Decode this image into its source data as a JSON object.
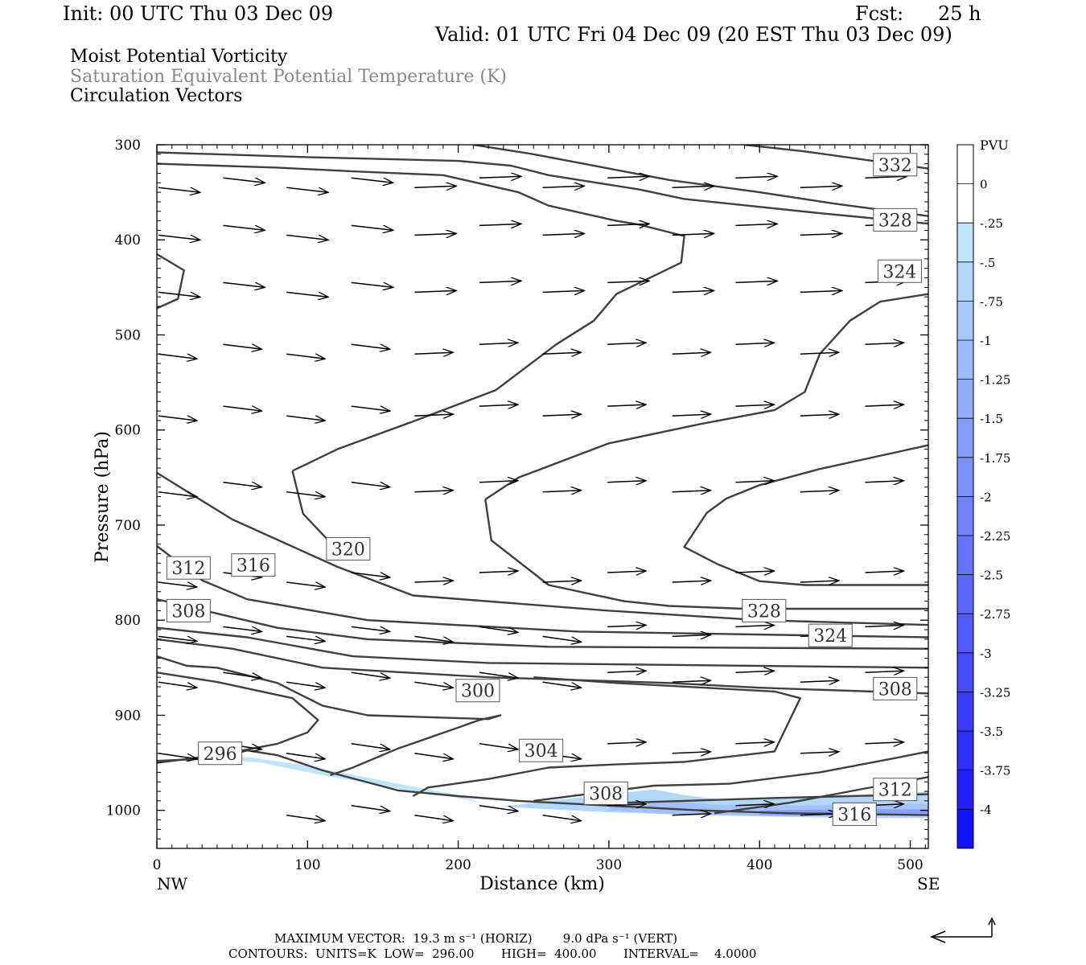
{
  "header": {
    "init": "Init: 00 UTC Thu 03 Dec 09",
    "fcst_label": "Fcst:",
    "fcst_value": "25 h",
    "valid": "Valid: 01 UTC Fri 04 Dec 09 (20 EST Thu 03 Dec 09)"
  },
  "fields": {
    "field1": "Moist Potential Vorticity",
    "field2": "Saturation Equivalent Potential Temperature (K)",
    "field3": "Circulation Vectors"
  },
  "colors": {
    "contour": "#404040",
    "field2_text": "#888888",
    "shade_light": "#bfe4fb"
  },
  "chart_data": {
    "type": "cross-section",
    "xlabel": "Distance (km)",
    "ylabel": "Pressure (hPa)",
    "x_left_label": "NW",
    "x_right_label": "SE",
    "xlim": [
      0,
      512
    ],
    "ylim": [
      1040,
      300
    ],
    "x_ticks": [
      0,
      100,
      200,
      300,
      400,
      500
    ],
    "y_ticks": [
      300,
      400,
      500,
      600,
      700,
      800,
      900,
      1000
    ],
    "colorbar": {
      "title": "PVU",
      "levels": [
        "0",
        "-.25",
        "-.5",
        "-.75",
        "-1",
        "-1.25",
        "-1.5",
        "-1.75",
        "-2",
        "-2.25",
        "-2.5",
        "-2.75",
        "-3",
        "-3.25",
        "-3.5",
        "-3.75",
        "-4"
      ],
      "colors": [
        "#ffffff",
        "#ffffff",
        "#bfe4fb",
        "#b3d6fb",
        "#a8c8fb",
        "#9dbafb",
        "#92acfb",
        "#879efb",
        "#7c90fb",
        "#7182fb",
        "#6674fb",
        "#5b66fb",
        "#5058fb",
        "#454afb",
        "#3a3cfb",
        "#2f2efb",
        "#2420fb",
        "#1212fb"
      ]
    },
    "contour_labels": [
      {
        "text": "332",
        "x": 490,
        "p": 321
      },
      {
        "text": "328",
        "x": 490,
        "p": 379
      },
      {
        "text": "324",
        "x": 493,
        "p": 433
      },
      {
        "text": "320",
        "x": 127,
        "p": 725
      },
      {
        "text": "316",
        "x": 64,
        "p": 742
      },
      {
        "text": "312",
        "x": 21,
        "p": 745
      },
      {
        "text": "308",
        "x": 21,
        "p": 790
      },
      {
        "text": "328",
        "x": 403,
        "p": 790
      },
      {
        "text": "324",
        "x": 447,
        "p": 816
      },
      {
        "text": "300",
        "x": 213,
        "p": 874
      },
      {
        "text": "308",
        "x": 490,
        "p": 872
      },
      {
        "text": "304",
        "x": 255,
        "p": 937
      },
      {
        "text": "296",
        "x": 42,
        "p": 940
      },
      {
        "text": "308",
        "x": 298,
        "p": 982
      },
      {
        "text": "312",
        "x": 490,
        "p": 978
      },
      {
        "text": "316",
        "x": 463,
        "p": 1004
      }
    ],
    "contours": [
      [
        [
          0,
          308
        ],
        [
          100,
          313
        ],
        [
          200,
          317
        ],
        [
          235,
          322
        ],
        [
          260,
          332
        ],
        [
          320,
          347
        ],
        [
          350,
          357
        ],
        [
          440,
          372
        ],
        [
          512,
          383
        ]
      ],
      [
        [
          210,
          300
        ],
        [
          250,
          310
        ],
        [
          300,
          325
        ],
        [
          340,
          337
        ],
        [
          400,
          350
        ],
        [
          450,
          362
        ],
        [
          512,
          375
        ]
      ],
      [
        [
          390,
          300
        ],
        [
          430,
          307
        ],
        [
          480,
          318
        ],
        [
          512,
          325
        ]
      ],
      [
        [
          0,
          415
        ],
        [
          18,
          432
        ],
        [
          14,
          462
        ],
        [
          0,
          472
        ]
      ],
      [
        [
          90,
          643
        ],
        [
          120,
          620
        ],
        [
          170,
          591
        ],
        [
          225,
          558
        ],
        [
          265,
          510
        ],
        [
          290,
          485
        ],
        [
          305,
          457
        ],
        [
          348,
          424
        ],
        [
          350,
          396
        ],
        [
          320,
          384
        ],
        [
          305,
          380
        ],
        [
          260,
          364
        ],
        [
          240,
          350
        ],
        [
          190,
          332
        ],
        [
          130,
          328
        ],
        [
          80,
          324
        ],
        [
          0,
          320
        ]
      ],
      [
        [
          90,
          643
        ],
        [
          97,
          688
        ],
        [
          115,
          718
        ]
      ],
      [
        [
          218,
          673
        ],
        [
          222,
          716
        ],
        [
          260,
          763
        ],
        [
          310,
          780
        ],
        [
          340,
          785
        ],
        [
          390,
          788
        ],
        [
          512,
          788
        ]
      ],
      [
        [
          218,
          673
        ],
        [
          240,
          650
        ],
        [
          300,
          614
        ],
        [
          360,
          594
        ],
        [
          410,
          579
        ],
        [
          430,
          560
        ],
        [
          440,
          520
        ],
        [
          460,
          485
        ],
        [
          480,
          465
        ],
        [
          512,
          457
        ]
      ],
      [
        [
          372,
          741
        ],
        [
          350,
          723
        ],
        [
          365,
          687
        ],
        [
          378,
          672
        ],
        [
          400,
          658
        ],
        [
          440,
          641
        ],
        [
          512,
          616
        ]
      ],
      [
        [
          372,
          741
        ],
        [
          400,
          759
        ],
        [
          430,
          763
        ],
        [
          512,
          763
        ]
      ],
      [
        [
          0,
          645
        ],
        [
          50,
          694
        ],
        [
          120,
          744
        ],
        [
          170,
          774
        ],
        [
          300,
          790
        ],
        [
          400,
          800
        ],
        [
          512,
          805
        ]
      ],
      [
        [
          0,
          722
        ],
        [
          30,
          758
        ],
        [
          60,
          778
        ],
        [
          140,
          800
        ],
        [
          280,
          812
        ],
        [
          512,
          818
        ]
      ],
      [
        [
          0,
          778
        ],
        [
          80,
          808
        ],
        [
          140,
          820
        ],
        [
          260,
          828
        ],
        [
          512,
          830
        ]
      ],
      [
        [
          0,
          808
        ],
        [
          60,
          818
        ],
        [
          130,
          838
        ],
        [
          220,
          845
        ],
        [
          512,
          850
        ]
      ],
      [
        [
          0,
          820
        ],
        [
          50,
          830
        ],
        [
          110,
          850
        ],
        [
          220,
          860
        ],
        [
          340,
          866
        ],
        [
          400,
          871
        ],
        [
          512,
          877
        ]
      ],
      [
        [
          0,
          838
        ],
        [
          20,
          848
        ],
        [
          40,
          850
        ],
        [
          80,
          866
        ],
        [
          110,
          890
        ],
        [
          140,
          900
        ],
        [
          220,
          904
        ],
        [
          228,
          900
        ],
        [
          214,
          905
        ],
        [
          200,
          913
        ],
        [
          160,
          935
        ],
        [
          130,
          955
        ],
        [
          115,
          963
        ]
      ],
      [
        [
          0,
          950
        ],
        [
          40,
          942
        ],
        [
          80,
          930
        ],
        [
          100,
          918
        ],
        [
          107,
          905
        ],
        [
          90,
          882
        ],
        [
          40,
          865
        ],
        [
          0,
          855
        ]
      ],
      [
        [
          0,
          948
        ],
        [
          40,
          945
        ],
        [
          60,
          937
        ],
        [
          80,
          942
        ],
        [
          110,
          958
        ],
        [
          160,
          979
        ],
        [
          200,
          985
        ],
        [
          240,
          990
        ],
        [
          300,
          995
        ],
        [
          360,
          1000
        ],
        [
          420,
          1003
        ],
        [
          512,
          1005
        ]
      ],
      [
        [
          170,
          985
        ],
        [
          180,
          976
        ],
        [
          220,
          967
        ],
        [
          260,
          955
        ],
        [
          300,
          952
        ],
        [
          350,
          949
        ],
        [
          410,
          938
        ],
        [
          427,
          882
        ],
        [
          410,
          875
        ],
        [
          305,
          866
        ],
        [
          250,
          860
        ]
      ],
      [
        [
          250,
          990
        ],
        [
          280,
          984
        ],
        [
          330,
          974
        ],
        [
          380,
          972
        ],
        [
          440,
          960
        ],
        [
          490,
          945
        ],
        [
          512,
          938
        ]
      ],
      [
        [
          290,
          993
        ],
        [
          350,
          990
        ],
        [
          410,
          987
        ],
        [
          460,
          985
        ],
        [
          512,
          983
        ]
      ],
      [
        [
          370,
          1003
        ],
        [
          420,
          992
        ],
        [
          470,
          977
        ],
        [
          512,
          965
        ]
      ]
    ],
    "vectors": {
      "rows_p": [
        340,
        390,
        450,
        515,
        580,
        660,
        755,
        812,
        860,
        935,
        1000
      ],
      "cols_x": [
        0,
        43,
        85,
        128,
        170,
        213,
        255,
        298,
        341,
        383,
        426,
        469,
        512
      ]
    },
    "shading": [
      {
        "level": "-.25",
        "points": [
          [
            20,
            943
          ],
          [
            70,
            950
          ],
          [
            110,
            963
          ],
          [
            160,
            977
          ],
          [
            200,
            987
          ],
          [
            215,
            992
          ],
          [
            200,
            984
          ],
          [
            150,
            969
          ],
          [
            100,
            953
          ],
          [
            60,
            944
          ]
        ]
      },
      {
        "level": "-.5",
        "points": [
          [
            229,
            996
          ],
          [
            260,
            990
          ],
          [
            300,
            983
          ],
          [
            330,
            978
          ],
          [
            350,
            984
          ],
          [
            370,
            988
          ],
          [
            420,
            987
          ],
          [
            470,
            986
          ],
          [
            512,
            980
          ],
          [
            512,
            1008
          ],
          [
            470,
            1008
          ],
          [
            420,
            1007
          ],
          [
            360,
            1005
          ],
          [
            300,
            1002
          ],
          [
            250,
            998
          ]
        ]
      }
    ]
  },
  "footer": {
    "max_vector": "MAXIMUM VECTOR:  19.3 m s⁻¹ (HORIZ)        9.0 dPa s⁻¹ (VERT)",
    "contours": "CONTOURS:  UNITS=K  LOW=  296.00       HIGH=  400.00       INTERVAL=    4.0000"
  }
}
